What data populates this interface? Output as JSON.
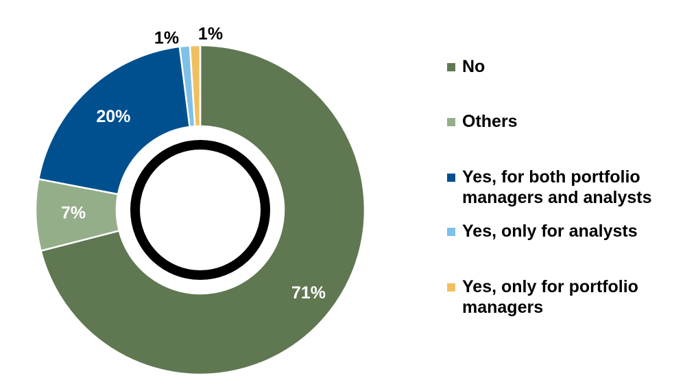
{
  "chart_data": {
    "type": "pie",
    "variant": "donut",
    "slices": [
      {
        "label": "No",
        "value": 71,
        "data_label": "71%",
        "color": "#607852"
      },
      {
        "label": "Others",
        "value": 7,
        "data_label": "7%",
        "color": "#94AE8A"
      },
      {
        "label": "Yes, for both portfolio managers and analysts",
        "value": 20,
        "data_label": "20%",
        "color": "#00508F"
      },
      {
        "label": "Yes, only for analysts",
        "value": 1,
        "data_label": "1%",
        "color": "#7EC0E8"
      },
      {
        "label": "Yes, only for portfolio managers",
        "value": 1,
        "data_label": "1%",
        "color": "#F0C060"
      }
    ],
    "legend_position": "right",
    "center_ring_color": "#000000"
  },
  "legend": {
    "items": [
      {
        "text": "No"
      },
      {
        "text": "Others"
      },
      {
        "text": "Yes, for both portfolio\nmanagers and analysts"
      },
      {
        "text": "Yes, only for analysts"
      },
      {
        "text": "Yes, only for portfolio\nmanagers"
      }
    ]
  }
}
